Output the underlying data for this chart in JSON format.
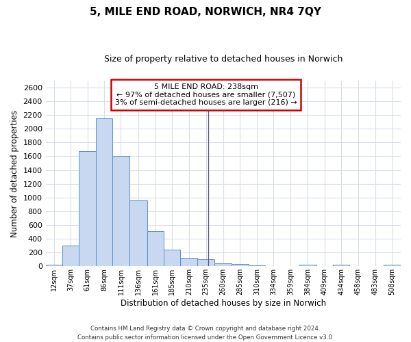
{
  "title": "5, MILE END ROAD, NORWICH, NR4 7QY",
  "subtitle": "Size of property relative to detached houses in Norwich",
  "xlabel": "Distribution of detached houses by size in Norwich",
  "ylabel": "Number of detached properties",
  "property_size": 238,
  "bar_color": "#c8d8f0",
  "bar_edge_color": "#5b8fc9",
  "vline_color": "#555577",
  "annotation_text": "5 MILE END ROAD: 238sqm\n← 97% of detached houses are smaller (7,507)\n3% of semi-detached houses are larger (216) →",
  "annotation_box_facecolor": "#ffffff",
  "annotation_box_edgecolor": "#cc0000",
  "bin_labels": [
    "12sqm",
    "37sqm",
    "61sqm",
    "86sqm",
    "111sqm",
    "136sqm",
    "161sqm",
    "185sqm",
    "210sqm",
    "235sqm",
    "260sqm",
    "285sqm",
    "310sqm",
    "334sqm",
    "359sqm",
    "384sqm",
    "409sqm",
    "434sqm",
    "458sqm",
    "483sqm",
    "508sqm"
  ],
  "bin_starts": [
    0,
    24.5,
    49,
    73.5,
    98,
    122.5,
    148.5,
    173.5,
    197.5,
    222.5,
    247.5,
    272.5,
    297.5,
    321.5,
    346.5,
    371.5,
    396.5,
    421.5,
    445.5,
    470.5,
    495.5
  ],
  "bin_ends": [
    24.5,
    49,
    73.5,
    98,
    122.5,
    148.5,
    173.5,
    197.5,
    222.5,
    247.5,
    272.5,
    297.5,
    321.5,
    346.5,
    371.5,
    396.5,
    421.5,
    445.5,
    470.5,
    495.5,
    520.5
  ],
  "bar_heights": [
    20,
    300,
    1670,
    2150,
    1600,
    960,
    510,
    245,
    120,
    100,
    45,
    30,
    10,
    5,
    5,
    20,
    5,
    20,
    5,
    5,
    20
  ],
  "ylim": [
    0,
    2700
  ],
  "yticks": [
    0,
    200,
    400,
    600,
    800,
    1000,
    1200,
    1400,
    1600,
    1800,
    2000,
    2200,
    2400,
    2600
  ],
  "footer": "Contains HM Land Registry data © Crown copyright and database right 2024.\nContains public sector information licensed under the Open Government Licence v3.0.",
  "bg_color": "#ffffff",
  "grid_color": "#d8dde8"
}
